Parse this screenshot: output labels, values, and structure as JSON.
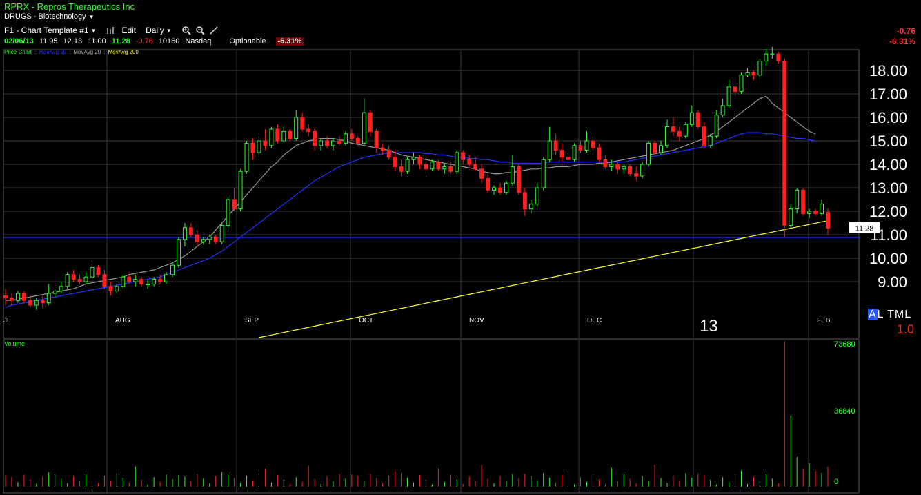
{
  "header": {
    "title": "RPRX - Repros Therapeutics Inc",
    "sector": "DRUGS - Biotechnology",
    "template": "F1 - Chart Template #1",
    "edit_label": "Edit",
    "period": "Daily"
  },
  "quote": {
    "date": "02/06/13",
    "open": "11.95",
    "high": "12.13",
    "low": "11.00",
    "last": "11.28",
    "change": "-0.76",
    "volume": "10160",
    "exchange": "Nasdaq",
    "optionable": "Optionable",
    "pct_change": "-6.31%"
  },
  "right_change": {
    "change": "-0.76",
    "pct": "-6.31%"
  },
  "legend": {
    "price": "Price Chart",
    "ma50": "MovAvg 50",
    "ma20": "MovAvg 20",
    "ma200": "MovAvg 200"
  },
  "axis": {
    "price_ticks": [
      "18.00",
      "17.00",
      "16.00",
      "15.00",
      "14.00",
      "13.00",
      "12.00",
      "11.00",
      "10.00",
      "9.00"
    ],
    "months": [
      "JL",
      "AUG",
      "SEP",
      "OCT",
      "NOV",
      "DEC",
      "FEB"
    ],
    "year_label": "13",
    "last_price_tag": "11.28",
    "volume_ticks": [
      "73680",
      "36840",
      "0"
    ]
  },
  "volume_label": "Volume",
  "controls": {
    "al_a": "A",
    "al_rest": "L TML",
    "zoom": "1.0"
  },
  "colors": {
    "up": "#30ff30",
    "down": "#ff2020",
    "ma50": "#2233ff",
    "ma20": "#999999",
    "ma200": "#ffff33",
    "grid": "#3a3a3a"
  },
  "chart_data": {
    "type": "candlestick",
    "symbol": "RPRX",
    "period": "Daily",
    "ylim": [
      8.0,
      19.0
    ],
    "candles": [
      [
        8.4,
        8.7,
        8.0,
        8.3
      ],
      [
        8.3,
        8.5,
        8.0,
        8.2
      ],
      [
        8.2,
        8.6,
        8.1,
        8.5
      ],
      [
        8.5,
        8.6,
        8.1,
        8.2
      ],
      [
        8.2,
        8.4,
        7.9,
        8.0
      ],
      [
        8.0,
        8.3,
        7.8,
        8.2
      ],
      [
        8.2,
        8.4,
        7.9,
        8.1
      ],
      [
        8.1,
        8.9,
        8.0,
        8.5
      ],
      [
        8.5,
        8.7,
        8.3,
        8.6
      ],
      [
        8.6,
        9.0,
        8.5,
        8.8
      ],
      [
        8.8,
        9.4,
        8.7,
        9.3
      ],
      [
        9.3,
        9.5,
        9.0,
        9.1
      ],
      [
        9.1,
        9.3,
        8.9,
        9.0
      ],
      [
        9.0,
        9.4,
        8.9,
        9.2
      ],
      [
        9.2,
        9.9,
        9.1,
        9.6
      ],
      [
        9.6,
        9.7,
        9.2,
        9.3
      ],
      [
        9.3,
        9.5,
        8.7,
        8.8
      ],
      [
        8.8,
        9.0,
        8.4,
        8.6
      ],
      [
        8.6,
        8.9,
        8.5,
        8.8
      ],
      [
        8.8,
        9.3,
        8.7,
        9.2
      ],
      [
        9.2,
        9.4,
        8.9,
        9.0
      ],
      [
        9.0,
        9.3,
        8.8,
        9.1
      ],
      [
        9.1,
        9.2,
        8.8,
        8.9
      ],
      [
        8.9,
        9.1,
        8.7,
        8.9
      ],
      [
        8.9,
        9.2,
        8.8,
        9.1
      ],
      [
        9.1,
        9.3,
        8.9,
        9.0
      ],
      [
        9.0,
        9.4,
        8.9,
        9.3
      ],
      [
        9.3,
        9.8,
        9.2,
        9.7
      ],
      [
        9.7,
        10.9,
        9.6,
        10.8
      ],
      [
        10.8,
        11.5,
        10.5,
        11.3
      ],
      [
        11.3,
        11.5,
        10.9,
        11.0
      ],
      [
        11.0,
        11.2,
        10.5,
        10.7
      ],
      [
        10.7,
        10.9,
        10.6,
        10.8
      ],
      [
        10.8,
        11.0,
        10.6,
        10.9
      ],
      [
        10.9,
        11.0,
        10.6,
        10.7
      ],
      [
        10.7,
        11.5,
        10.6,
        11.4
      ],
      [
        11.4,
        12.6,
        11.3,
        12.5
      ],
      [
        12.5,
        13.0,
        12.0,
        12.1
      ],
      [
        12.1,
        13.8,
        12.0,
        13.7
      ],
      [
        13.7,
        15.0,
        13.6,
        14.9
      ],
      [
        14.9,
        15.1,
        14.2,
        14.5
      ],
      [
        14.5,
        15.2,
        14.3,
        15.0
      ],
      [
        15.0,
        15.5,
        14.6,
        14.8
      ],
      [
        14.8,
        15.6,
        14.7,
        15.5
      ],
      [
        15.5,
        15.7,
        14.9,
        15.0
      ],
      [
        15.0,
        15.6,
        14.9,
        15.4
      ],
      [
        15.4,
        15.5,
        15.0,
        15.1
      ],
      [
        15.1,
        16.3,
        15.0,
        16.0
      ],
      [
        16.0,
        16.2,
        15.4,
        15.5
      ],
      [
        15.5,
        15.7,
        15.2,
        15.4
      ],
      [
        15.4,
        15.5,
        14.6,
        14.8
      ],
      [
        14.8,
        15.1,
        14.6,
        15.0
      ],
      [
        15.0,
        15.2,
        14.7,
        14.8
      ],
      [
        14.8,
        15.1,
        14.6,
        15.0
      ],
      [
        15.0,
        15.2,
        14.8,
        14.9
      ],
      [
        14.9,
        15.4,
        14.8,
        15.3
      ],
      [
        15.3,
        15.5,
        15.0,
        15.1
      ],
      [
        15.1,
        15.2,
        14.8,
        14.9
      ],
      [
        14.9,
        16.8,
        14.8,
        16.2
      ],
      [
        16.2,
        16.3,
        15.2,
        15.4
      ],
      [
        15.4,
        15.5,
        14.5,
        14.7
      ],
      [
        14.7,
        14.9,
        14.4,
        14.6
      ],
      [
        14.6,
        14.8,
        14.2,
        14.3
      ],
      [
        14.3,
        14.6,
        13.7,
        13.9
      ],
      [
        13.9,
        14.2,
        13.5,
        13.7
      ],
      [
        13.7,
        14.3,
        13.6,
        14.2
      ],
      [
        14.2,
        14.5,
        14.0,
        14.3
      ],
      [
        14.3,
        14.4,
        13.8,
        14.0
      ],
      [
        14.0,
        14.3,
        13.6,
        13.8
      ],
      [
        13.8,
        14.2,
        13.7,
        14.1
      ],
      [
        14.1,
        14.2,
        13.7,
        13.8
      ],
      [
        13.8,
        14.0,
        13.6,
        13.9
      ],
      [
        13.9,
        14.1,
        13.6,
        13.7
      ],
      [
        13.7,
        14.6,
        13.6,
        14.5
      ],
      [
        14.5,
        14.6,
        14.0,
        14.2
      ],
      [
        14.2,
        14.4,
        13.9,
        14.0
      ],
      [
        14.0,
        14.3,
        13.7,
        13.8
      ],
      [
        13.8,
        14.0,
        13.2,
        13.4
      ],
      [
        13.4,
        13.6,
        12.8,
        12.9
      ],
      [
        12.9,
        13.1,
        12.7,
        13.0
      ],
      [
        13.0,
        13.2,
        12.7,
        12.8
      ],
      [
        12.8,
        13.3,
        12.7,
        13.2
      ],
      [
        13.2,
        14.4,
        13.1,
        13.9
      ],
      [
        13.9,
        14.0,
        12.7,
        12.8
      ],
      [
        12.8,
        13.0,
        11.8,
        12.1
      ],
      [
        12.1,
        12.5,
        11.9,
        12.3
      ],
      [
        12.3,
        13.2,
        12.2,
        13.0
      ],
      [
        13.0,
        14.3,
        12.9,
        14.2
      ],
      [
        14.2,
        15.6,
        14.1,
        15.0
      ],
      [
        15.0,
        15.3,
        14.4,
        14.6
      ],
      [
        14.6,
        14.9,
        14.1,
        14.3
      ],
      [
        14.3,
        14.5,
        14.0,
        14.2
      ],
      [
        14.2,
        14.9,
        14.1,
        14.8
      ],
      [
        14.8,
        15.0,
        14.5,
        14.6
      ],
      [
        14.6,
        15.4,
        14.5,
        15.0
      ],
      [
        15.0,
        15.2,
        14.6,
        14.7
      ],
      [
        14.7,
        14.9,
        14.1,
        14.2
      ],
      [
        14.2,
        14.4,
        13.8,
        13.9
      ],
      [
        13.9,
        14.2,
        13.7,
        14.0
      ],
      [
        14.0,
        14.1,
        13.6,
        13.8
      ],
      [
        13.8,
        14.0,
        13.6,
        13.9
      ],
      [
        13.9,
        14.0,
        13.5,
        13.6
      ],
      [
        13.6,
        13.9,
        13.3,
        13.5
      ],
      [
        13.5,
        14.1,
        13.4,
        14.0
      ],
      [
        14.0,
        15.0,
        13.9,
        14.9
      ],
      [
        14.9,
        15.0,
        14.4,
        14.5
      ],
      [
        14.5,
        15.0,
        14.4,
        14.8
      ],
      [
        14.8,
        15.9,
        14.7,
        15.6
      ],
      [
        15.6,
        16.0,
        15.2,
        15.4
      ],
      [
        15.4,
        15.6,
        15.0,
        15.2
      ],
      [
        15.2,
        15.8,
        15.1,
        15.7
      ],
      [
        15.7,
        16.5,
        15.6,
        16.2
      ],
      [
        16.2,
        16.3,
        15.5,
        15.6
      ],
      [
        15.6,
        15.8,
        14.7,
        14.8
      ],
      [
        14.8,
        15.3,
        14.7,
        15.2
      ],
      [
        15.2,
        16.3,
        15.1,
        16.1
      ],
      [
        16.1,
        16.8,
        16.0,
        16.5
      ],
      [
        16.5,
        17.6,
        16.4,
        17.3
      ],
      [
        17.3,
        17.4,
        16.9,
        17.1
      ],
      [
        17.1,
        17.9,
        17.0,
        17.8
      ],
      [
        17.8,
        18.1,
        17.7,
        17.9
      ],
      [
        17.9,
        18.0,
        17.6,
        17.8
      ],
      [
        17.8,
        18.5,
        17.7,
        18.4
      ],
      [
        18.4,
        18.9,
        18.2,
        18.7
      ],
      [
        18.7,
        19.0,
        18.5,
        18.7
      ],
      [
        18.7,
        18.8,
        18.3,
        18.4
      ],
      [
        18.4,
        18.5,
        10.9,
        11.4
      ],
      [
        11.4,
        12.3,
        11.3,
        12.1
      ],
      [
        12.1,
        13.0,
        11.9,
        12.9
      ],
      [
        12.9,
        13.0,
        11.8,
        11.9
      ],
      [
        11.9,
        12.1,
        11.7,
        12.0
      ],
      [
        12.0,
        12.1,
        11.8,
        11.9
      ],
      [
        11.9,
        12.5,
        11.8,
        12.3
      ],
      [
        11.95,
        12.13,
        11.0,
        11.28
      ]
    ],
    "ma20": [
      8.2,
      8.2,
      8.25,
      8.3,
      8.35,
      8.4,
      8.45,
      8.5,
      8.55,
      8.6,
      8.65,
      8.7,
      8.8,
      8.9,
      8.95,
      9.0,
      9.05,
      9.1,
      9.15,
      9.2,
      9.3,
      9.35,
      9.4,
      9.45,
      9.5,
      9.6,
      9.7,
      9.8,
      9.95,
      10.1,
      10.3,
      10.5,
      10.7,
      10.9,
      11.2,
      11.5,
      11.8,
      12.1,
      12.4,
      12.7,
      13.0,
      13.3,
      13.6,
      13.9,
      14.1,
      14.4,
      14.6,
      14.8,
      14.9,
      15.0,
      15.05,
      15.1,
      15.1,
      15.1,
      15.05,
      15.0,
      14.9,
      14.85,
      14.8,
      14.75,
      14.7,
      14.65,
      14.6,
      14.5,
      14.4,
      14.35,
      14.3,
      14.25,
      14.2,
      14.15,
      14.1,
      14.05,
      14.0,
      13.95,
      13.9,
      13.85,
      13.8,
      13.7,
      13.65,
      13.6,
      13.6,
      13.65,
      13.65,
      13.7,
      13.75,
      13.8,
      13.8,
      13.85,
      13.85,
      13.9,
      13.9,
      13.9,
      13.95,
      14.0,
      14.0,
      14.0,
      14.05,
      14.05,
      14.1,
      14.15,
      14.2,
      14.25,
      14.3,
      14.35,
      14.4,
      14.45,
      14.5,
      14.55,
      14.6,
      14.7,
      14.8,
      14.9,
      15.0,
      15.1,
      15.25,
      15.4,
      15.6,
      15.8,
      16.0,
      16.2,
      16.4,
      16.6,
      16.8,
      16.9,
      16.6,
      16.4,
      16.2,
      16.0,
      15.8,
      15.6,
      15.4,
      15.3
    ],
    "ma50": [
      7.9,
      8.0,
      8.05,
      8.1,
      8.15,
      8.2,
      8.25,
      8.3,
      8.35,
      8.4,
      8.45,
      8.5,
      8.55,
      8.6,
      8.65,
      8.7,
      8.75,
      8.8,
      8.85,
      8.9,
      8.95,
      9.0,
      9.05,
      9.1,
      9.15,
      9.2,
      9.3,
      9.4,
      9.5,
      9.6,
      9.7,
      9.8,
      9.9,
      10.0,
      10.15,
      10.3,
      10.5,
      10.7,
      10.9,
      11.1,
      11.3,
      11.5,
      11.7,
      11.9,
      12.1,
      12.3,
      12.5,
      12.7,
      12.9,
      13.1,
      13.3,
      13.45,
      13.6,
      13.75,
      13.9,
      14.0,
      14.1,
      14.2,
      14.3,
      14.35,
      14.4,
      14.45,
      14.5,
      14.5,
      14.5,
      14.5,
      14.5,
      14.5,
      14.45,
      14.45,
      14.4,
      14.4,
      14.35,
      14.3,
      14.3,
      14.25,
      14.25,
      14.2,
      14.2,
      14.15,
      14.1,
      14.1,
      14.05,
      14.05,
      14.05,
      14.05,
      14.05,
      14.05,
      14.1,
      14.1,
      14.1,
      14.1,
      14.1,
      14.1,
      14.1,
      14.1,
      14.1,
      14.1,
      14.1,
      14.1,
      14.1,
      14.15,
      14.2,
      14.25,
      14.3,
      14.35,
      14.4,
      14.45,
      14.5,
      14.55,
      14.6,
      14.65,
      14.7,
      14.75,
      14.8,
      14.9,
      15.0,
      15.1,
      15.2,
      15.3,
      15.35,
      15.35,
      15.35,
      15.3,
      15.3,
      15.25,
      15.2,
      15.15,
      15.1,
      15.1,
      15.05,
      15.0
    ],
    "ma200_range": [
      4.4,
      11.6
    ]
  }
}
